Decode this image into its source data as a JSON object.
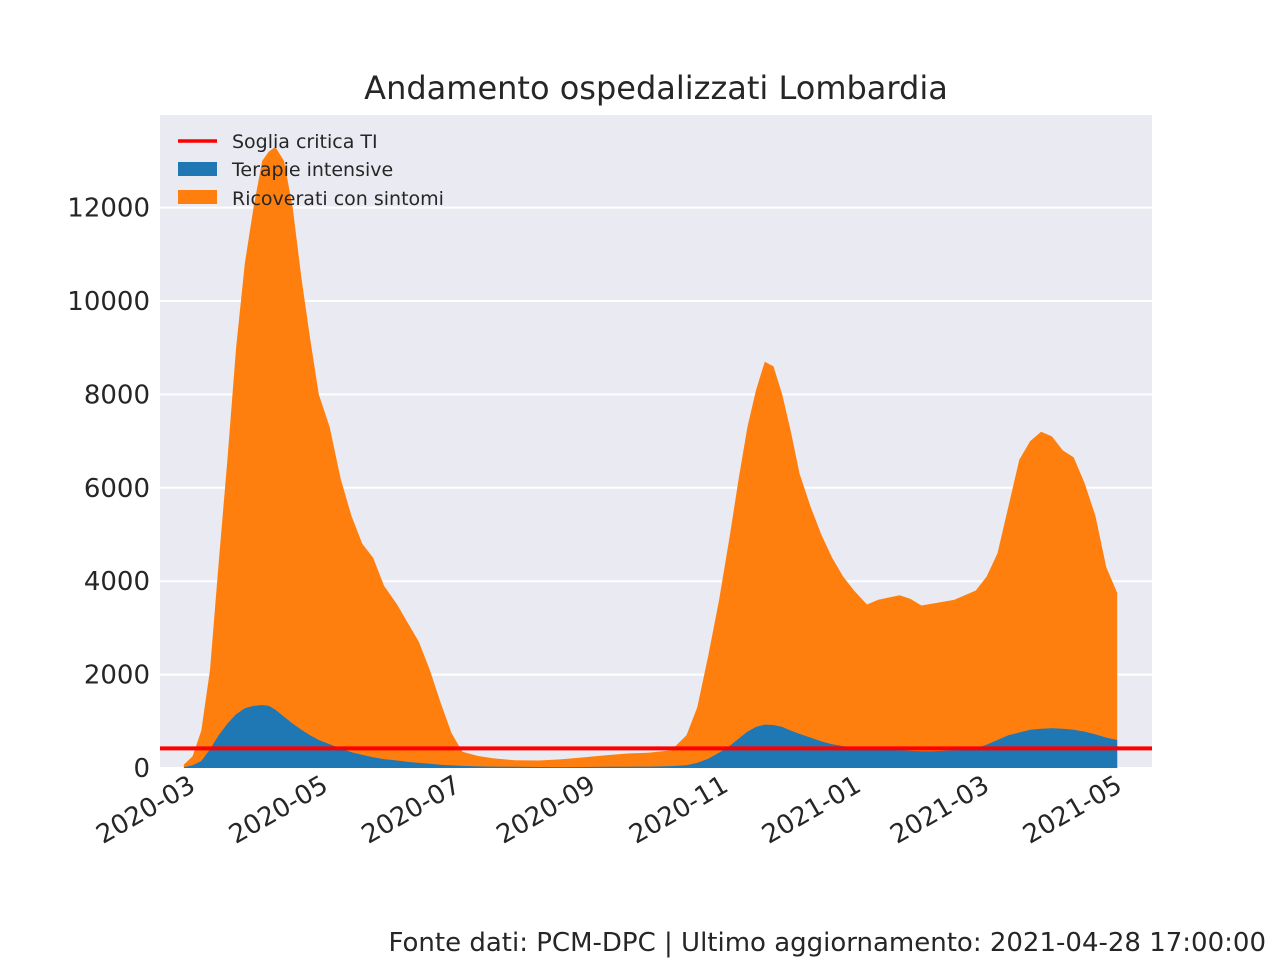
{
  "chart_data": {
    "type": "area",
    "title": "Andamento ospedalizzati Lombardia",
    "xlabel": "",
    "ylabel": "",
    "x_ticks": [
      "2020-03",
      "2020-05",
      "2020-07",
      "2020-09",
      "2020-11",
      "2021-01",
      "2021-03",
      "2021-05"
    ],
    "y_ticks": [
      0,
      2000,
      4000,
      6000,
      8000,
      10000,
      12000
    ],
    "ylim": [
      0,
      14000
    ],
    "xlim": [
      "2020-02-13",
      "2021-05-14"
    ],
    "grid": true,
    "legend_position": "top-left",
    "stacked": true,
    "x": [
      "2020-02-24",
      "2020-02-28",
      "2020-03-03",
      "2020-03-07",
      "2020-03-11",
      "2020-03-15",
      "2020-03-19",
      "2020-03-23",
      "2020-03-27",
      "2020-03-31",
      "2020-04-03",
      "2020-04-06",
      "2020-04-10",
      "2020-04-14",
      "2020-04-18",
      "2020-04-22",
      "2020-04-26",
      "2020-05-01",
      "2020-05-06",
      "2020-05-11",
      "2020-05-16",
      "2020-05-21",
      "2020-05-26",
      "2020-06-01",
      "2020-06-06",
      "2020-06-11",
      "2020-06-16",
      "2020-06-21",
      "2020-06-26",
      "2020-07-01",
      "2020-07-08",
      "2020-07-15",
      "2020-07-25",
      "2020-08-05",
      "2020-08-15",
      "2020-08-25",
      "2020-09-05",
      "2020-09-15",
      "2020-09-25",
      "2020-10-05",
      "2020-10-12",
      "2020-10-17",
      "2020-10-22",
      "2020-10-27",
      "2020-11-01",
      "2020-11-05",
      "2020-11-09",
      "2020-11-13",
      "2020-11-17",
      "2020-11-21",
      "2020-11-25",
      "2020-11-29",
      "2020-12-03",
      "2020-12-08",
      "2020-12-13",
      "2020-12-18",
      "2020-12-23",
      "2020-12-28",
      "2021-01-03",
      "2021-01-08",
      "2021-01-13",
      "2021-01-18",
      "2021-01-23",
      "2021-01-28",
      "2021-02-02",
      "2021-02-07",
      "2021-02-12",
      "2021-02-17",
      "2021-02-22",
      "2021-02-27",
      "2021-03-04",
      "2021-03-09",
      "2021-03-14",
      "2021-03-19",
      "2021-03-24",
      "2021-03-29",
      "2021-04-03",
      "2021-04-08",
      "2021-04-13",
      "2021-04-18",
      "2021-04-23",
      "2021-04-28"
    ],
    "series": [
      {
        "name": "Ricoverati con sintomi",
        "color": "#ff7f0e",
        "values": [
          76,
          250,
          800,
          2100,
          4400,
          6600,
          9000,
          10800,
          12000,
          13000,
          13200,
          13300,
          13000,
          12000,
          10500,
          9200,
          8000,
          7300,
          6200,
          5400,
          4800,
          4500,
          3900,
          3500,
          3100,
          2700,
          2100,
          1400,
          750,
          350,
          260,
          210,
          165,
          160,
          185,
          225,
          275,
          310,
          330,
          380,
          700,
          1300,
          2400,
          3600,
          5000,
          6200,
          7300,
          8100,
          8700,
          8600,
          8000,
          7200,
          6300,
          5600,
          5000,
          4500,
          4100,
          3800,
          3500,
          3600,
          3650,
          3700,
          3620,
          3480,
          3520,
          3560,
          3600,
          3700,
          3800,
          4100,
          4600,
          5600,
          6600,
          7000,
          7200,
          7100,
          6800,
          6650,
          6100,
          5400,
          4300,
          3750
        ],
        "draw_values": [
          76,
          250,
          800,
          2100,
          4400,
          6600,
          9000,
          10800,
          12000,
          13000,
          13200,
          13300,
          13000,
          12000,
          10500,
          9200,
          8000,
          7300,
          6200,
          5400,
          4800,
          4500,
          3900,
          3500,
          3100,
          2700,
          2100,
          1400,
          750,
          350,
          260,
          210,
          165,
          160,
          185,
          225,
          275,
          310,
          330,
          380,
          700,
          1300,
          2400,
          3600,
          5000,
          6200,
          7300,
          8100,
          8700,
          8600,
          8000,
          7200,
          6300,
          5600,
          5000,
          4500,
          4100,
          3800,
          3500,
          3600,
          3650,
          3700,
          3620,
          3480,
          3520,
          3560,
          3600,
          3700,
          3800,
          4100,
          4600,
          5600,
          6600,
          7000,
          7200,
          7100,
          6800,
          6650,
          6100,
          5400,
          4300,
          3750
        ]
      },
      {
        "name": "Terapie intensive",
        "color": "#1f77b4",
        "values": [
          20,
          60,
          150,
          400,
          700,
          950,
          1150,
          1280,
          1330,
          1350,
          1330,
          1250,
          1100,
          950,
          820,
          700,
          600,
          510,
          420,
          340,
          280,
          230,
          190,
          160,
          130,
          110,
          90,
          70,
          55,
          45,
          35,
          30,
          25,
          22,
          20,
          22,
          25,
          28,
          30,
          40,
          60,
          110,
          200,
          330,
          480,
          630,
          780,
          880,
          930,
          920,
          880,
          800,
          730,
          650,
          570,
          510,
          470,
          440,
          420,
          400,
          390,
          380,
          370,
          360,
          360,
          370,
          380,
          390,
          420,
          500,
          600,
          700,
          760,
          820,
          840,
          850,
          840,
          820,
          780,
          720,
          650,
          600
        ],
        "draw_values": [
          20,
          60,
          150,
          400,
          700,
          950,
          1150,
          1280,
          1330,
          1350,
          1330,
          1250,
          1100,
          950,
          820,
          700,
          600,
          510,
          420,
          340,
          280,
          230,
          190,
          160,
          130,
          110,
          90,
          70,
          55,
          45,
          35,
          30,
          25,
          22,
          20,
          22,
          25,
          28,
          30,
          40,
          60,
          110,
          200,
          330,
          480,
          630,
          780,
          880,
          930,
          920,
          880,
          800,
          730,
          650,
          570,
          510,
          470,
          440,
          420,
          400,
          390,
          380,
          370,
          360,
          360,
          370,
          380,
          390,
          420,
          500,
          600,
          700,
          760,
          820,
          840,
          850,
          840,
          820,
          780,
          720,
          650,
          600
        ]
      }
    ],
    "threshold": {
      "name": "Soglia critica TI",
      "color": "#ff0000",
      "value": 420
    }
  },
  "legend": {
    "items": [
      {
        "label": "Soglia critica TI",
        "color": "#ff0000",
        "kind": "line"
      },
      {
        "label": "Terapie intensive",
        "color": "#1f77b4",
        "kind": "patch"
      },
      {
        "label": "Ricoverati con sintomi",
        "color": "#ff7f0e",
        "kind": "patch"
      }
    ]
  },
  "footer": "Fonte dati: PCM-DPC | Ultimo aggiornamento: 2021-04-28 17:00:00"
}
